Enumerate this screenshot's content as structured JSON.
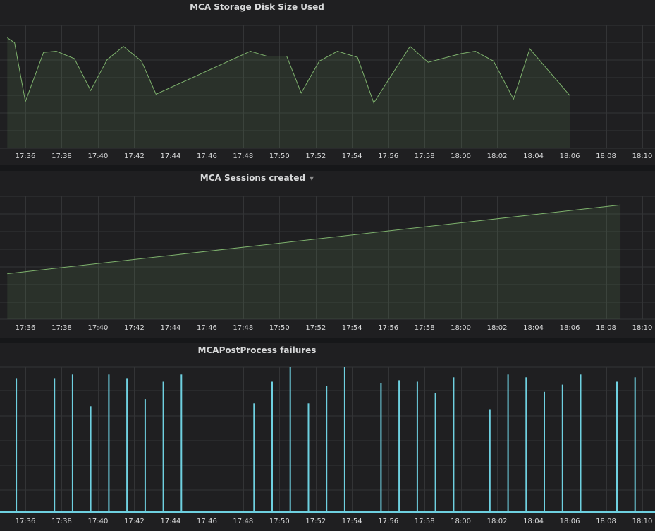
{
  "chart_data": [
    {
      "type": "area",
      "title": "MCA Storage Disk Size Used",
      "x_ticks": [
        "17:36",
        "17:38",
        "17:40",
        "17:42",
        "17:44",
        "17:46",
        "17:48",
        "17:50",
        "17:52",
        "17:54",
        "17:56",
        "17:58",
        "18:00",
        "18:02",
        "18:04",
        "18:06",
        "18:08",
        "18:10"
      ],
      "series": [
        {
          "color": "#7eb26d",
          "points": [
            [
              "17:35.0",
              0.9
            ],
            [
              "17:35.4",
              0.86
            ],
            [
              "17:36.0",
              0.38
            ],
            [
              "17:37.0",
              0.78
            ],
            [
              "17:37.7",
              0.79
            ],
            [
              "17:38.7",
              0.73
            ],
            [
              "17:39.6",
              0.47
            ],
            [
              "17:40.5",
              0.72
            ],
            [
              "17:41.4",
              0.83
            ],
            [
              "17:42.4",
              0.71
            ],
            [
              "17:43.2",
              0.44
            ],
            [
              "17:48.4",
              0.79
            ],
            [
              "17:49.3",
              0.75
            ],
            [
              "17:50.4",
              0.75
            ],
            [
              "17:51.2",
              0.45
            ],
            [
              "17:52.2",
              0.71
            ],
            [
              "17:53.2",
              0.79
            ],
            [
              "17:54.3",
              0.74
            ],
            [
              "17:55.2",
              0.37
            ],
            [
              "17:57.2",
              0.83
            ],
            [
              "17:58.2",
              0.7
            ],
            [
              "18:00.0",
              0.77
            ],
            [
              "18:00.8",
              0.79
            ],
            [
              "18:01.8",
              0.71
            ],
            [
              "18:02.9",
              0.4
            ],
            [
              "18:03.8",
              0.81
            ],
            [
              "18:06.0",
              0.43
            ]
          ]
        }
      ],
      "ylim": [
        0,
        1
      ],
      "grid": true
    },
    {
      "type": "area",
      "title": "MCA Sessions created",
      "x_ticks": [
        "17:36",
        "17:38",
        "17:40",
        "17:42",
        "17:44",
        "17:46",
        "17:48",
        "17:50",
        "17:52",
        "17:54",
        "17:56",
        "17:58",
        "18:00",
        "18:02",
        "18:04",
        "18:06",
        "18:08",
        "18:10"
      ],
      "series": [
        {
          "color": "#7eb26d",
          "points": [
            [
              "17:35.0",
              0.37
            ],
            [
              "18:08.8",
              0.93
            ]
          ]
        }
      ],
      "ylim": [
        0,
        1
      ],
      "grid": true
    },
    {
      "type": "bar",
      "title": "MCAPostProcess failures",
      "x_ticks": [
        "17:36",
        "17:38",
        "17:40",
        "17:42",
        "17:44",
        "17:46",
        "17:48",
        "17:50",
        "17:52",
        "17:54",
        "17:56",
        "17:58",
        "18:00",
        "18:02",
        "18:04",
        "18:06",
        "18:08",
        "18:10"
      ],
      "series": [
        {
          "color": "#6ed0e0",
          "points": [
            [
              "17:35.5",
              0.92
            ],
            [
              "17:37.6",
              0.92
            ],
            [
              "17:38.6",
              0.95
            ],
            [
              "17:39.6",
              0.73
            ],
            [
              "17:40.6",
              0.95
            ],
            [
              "17:41.6",
              0.92
            ],
            [
              "17:42.6",
              0.78
            ],
            [
              "17:43.6",
              0.9
            ],
            [
              "17:44.6",
              0.95
            ],
            [
              "17:48.6",
              0.75
            ],
            [
              "17:49.6",
              0.9
            ],
            [
              "17:50.6",
              1.0
            ],
            [
              "17:51.6",
              0.75
            ],
            [
              "17:52.6",
              0.87
            ],
            [
              "17:53.6",
              1.0
            ],
            [
              "17:55.6",
              0.89
            ],
            [
              "17:56.6",
              0.91
            ],
            [
              "17:57.6",
              0.9
            ],
            [
              "17:58.6",
              0.82
            ],
            [
              "17:59.6",
              0.93
            ],
            [
              "18:01.6",
              0.71
            ],
            [
              "18:02.6",
              0.95
            ],
            [
              "18:03.6",
              0.93
            ],
            [
              "18:04.6",
              0.83
            ],
            [
              "18:05.6",
              0.88
            ],
            [
              "18:06.6",
              0.95
            ],
            [
              "18:08.6",
              0.9
            ],
            [
              "18:09.6",
              0.93
            ]
          ]
        }
      ],
      "ylim": [
        0,
        1
      ],
      "grid": true
    }
  ]
}
